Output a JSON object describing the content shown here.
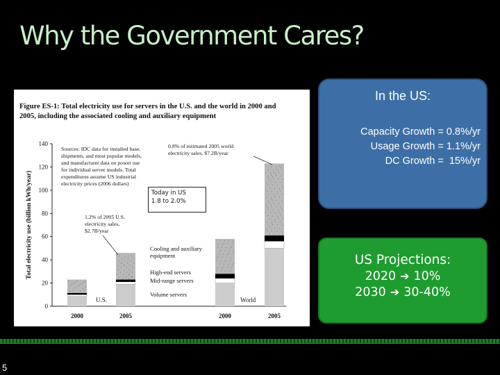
{
  "slide": {
    "title": "Why the Government Cares?",
    "slide_number": "5"
  },
  "figure": {
    "caption_lines": [
      "Figure ES-1:  Total electricity use for servers in the U.S. and the world in 2000 and",
      "2005, including the associated cooling and auxiliary equipment"
    ],
    "sources_lines": [
      "Sources:  IDC data for installed base,",
      "shipments, and most popular models,",
      "and manufacturer data on power use",
      "for individual server models.  Total",
      "expenditures assume US industrial",
      "electricity prices (2006 dollars)"
    ],
    "world_annotation_lines": [
      "0.8% of estimated 2005 world",
      "electricity sales, $7.2B/year"
    ],
    "us_annotation_lines": [
      "1.2% of 2005 U.S.",
      "electricity sales,",
      "$2.7B/year"
    ],
    "legend_lines": [
      "Cooling and auxiliary",
      "equipment",
      "High-end servers",
      "Mid-range servers",
      "Volume servers"
    ],
    "group_labels": [
      "U.S.",
      "World"
    ],
    "callout_lines": [
      "Today in US",
      "1.8 to 2.0%"
    ]
  },
  "chart_data": {
    "type": "bar",
    "stacked": true,
    "title": "",
    "ylabel": "Total electricity use (billion kWh/year)",
    "xlabel": "",
    "ylim": [
      0,
      140
    ],
    "yticks": [
      "0",
      "20",
      "40",
      "60",
      "80",
      "100",
      "120",
      "140"
    ],
    "categories": [
      "2000",
      "2005",
      "2000",
      "2005"
    ],
    "groups": [
      "U.S.",
      "U.S.",
      "World",
      "World"
    ],
    "series": [
      {
        "name": "Volume servers",
        "values": [
          8.5,
          19,
          20,
          50
        ]
      },
      {
        "name": "Mid-range servers",
        "values": [
          1.5,
          2,
          4,
          6
        ]
      },
      {
        "name": "High-end servers",
        "values": [
          1.5,
          2,
          4,
          5
        ]
      },
      {
        "name": "Cooling and auxiliary equipment",
        "values": [
          11.5,
          23,
          30,
          62
        ]
      }
    ],
    "colors": {
      "volume": "#cccccc",
      "mid": "#ffffff",
      "high": "#000000",
      "cooling": "#b8b8b8"
    },
    "grid": false
  },
  "us_box": {
    "title": "In the US:",
    "lines": [
      "Capacity Growth = 0.8%/yr",
      "Usage Growth = 1.1%/yr",
      "DC Growth =  15%/yr"
    ],
    "color": "#3d6fa6"
  },
  "projections_box": {
    "title": "US Projections:",
    "rows": [
      {
        "year": "2020",
        "value": "10%"
      },
      {
        "year": "2030",
        "value": "30-40%"
      }
    ],
    "arrow_icon": "right-arrow-icon",
    "color": "#1e9c2f"
  }
}
